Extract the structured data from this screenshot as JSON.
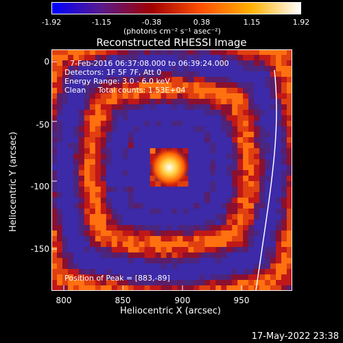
{
  "colorbar": {
    "ticks": [
      "-1.92",
      "-1.15",
      "-0.38",
      "0.38",
      "1.15",
      "1.92"
    ],
    "units": "(photons cm⁻² s⁻¹ asec⁻²)",
    "colors": [
      "#0000ff",
      "#5a1a8a",
      "#a00000",
      "#ff5000",
      "#ffb000",
      "#ffffff"
    ]
  },
  "title": "Reconstructed RHESSI Image",
  "overlay": {
    "time_range": "7-Feb-2016 06:37:08.000 to 06:39:24.000",
    "detectors": "Detectors: 1F 5F 7F, Att 0",
    "energy": "Energy Range: 3.0 - 6.0 keV",
    "method": "Clean     Total counts: 1.53E+04",
    "peak": "Position of Peak = [883,-89]"
  },
  "axes": {
    "xlabel": "Heliocentric X (arcsec)",
    "ylabel": "Heliocentric Y (arcsec)",
    "xticks": [
      "800",
      "850",
      "900",
      "950"
    ],
    "yticks": [
      "0",
      "-50",
      "-100",
      "-150"
    ]
  },
  "footer": "17-May-2022 23:38"
}
